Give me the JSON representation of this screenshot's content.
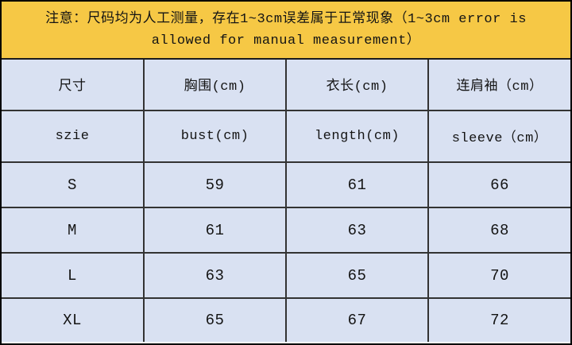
{
  "notice": {
    "line1": "注意：尺码均为人工测量，存在1~3cm误差属于正常现象（1~3cm error is",
    "line2": "allowed for manual measurement）",
    "bg_color": "#f6c845",
    "text_color": "#141414"
  },
  "table": {
    "cell_bg_color": "#d9e1f2",
    "border_color": "#333333",
    "header_cn": [
      "尺寸",
      "胸围(cm)",
      "衣长(cm)",
      "连肩袖（cm）"
    ],
    "header_en": [
      "szie",
      "bust(cm)",
      "length(cm)",
      "sleeve（cm）"
    ],
    "rows": [
      {
        "size": "S",
        "bust": "59",
        "length": "61",
        "sleeve": "66"
      },
      {
        "size": "M",
        "bust": "61",
        "length": "63",
        "sleeve": "68"
      },
      {
        "size": "L",
        "bust": "63",
        "length": "65",
        "sleeve": "70"
      },
      {
        "size": "XL",
        "bust": "65",
        "length": "67",
        "sleeve": "72"
      }
    ]
  }
}
